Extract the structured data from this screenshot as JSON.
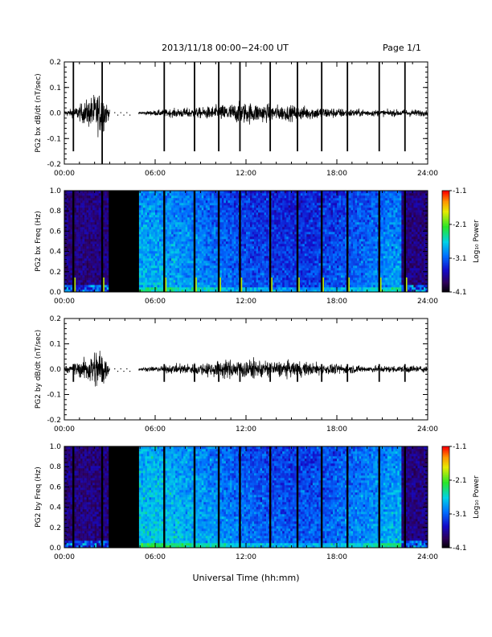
{
  "header": {
    "title": "2013/11/18  00:00−24:00 UT",
    "page": "Page 1/1"
  },
  "xaxis_title": "Universal Time (hh:mm)",
  "chart_data": [
    {
      "type": "line",
      "title": "",
      "ylabel": "PG2 bx dB/dt (nT/sec)",
      "xlabel": "Universal Time (hh:mm)",
      "xlim": [
        0,
        24
      ],
      "ylim": [
        -0.2,
        0.2
      ],
      "x_ticks": [
        "00:00",
        "06:00",
        "12:00",
        "18:00",
        "24:00"
      ],
      "y_ticks": [
        "-0.2",
        "-0.1",
        "0.0",
        "0.1",
        "0.2"
      ],
      "gap_hours": [
        3.0,
        4.9
      ],
      "spike_times_hours": [
        0.6,
        2.5,
        6.6,
        8.6,
        10.2,
        11.6,
        13.6,
        15.4,
        17.0,
        18.7,
        20.8,
        22.5
      ],
      "series": [
        {
          "x": [
            0,
            0.5,
            1,
            1.5,
            2,
            2.5,
            3,
            4.9,
            6,
            7,
            8,
            9,
            10,
            11,
            12,
            13,
            14,
            15,
            16,
            17,
            18,
            19,
            20,
            21,
            22,
            23,
            24
          ],
          "y": [
            0.01,
            0.015,
            0.03,
            0.05,
            0.07,
            0.08,
            0.01,
            0.005,
            0.01,
            0.015,
            0.018,
            0.02,
            0.028,
            0.035,
            0.04,
            0.035,
            0.03,
            0.028,
            0.025,
            0.022,
            0.018,
            0.015,
            0.012,
            0.012,
            0.012,
            0.014,
            0.01
          ]
        }
      ]
    },
    {
      "type": "heatmap",
      "title": "",
      "ylabel": "PG2 bx Freq (Hz)",
      "xlim": [
        0,
        24
      ],
      "ylim": [
        0.0,
        1.0
      ],
      "x_ticks": [
        "00:00",
        "06:00",
        "12:00",
        "18:00",
        "24:00"
      ],
      "y_ticks": [
        "0.0",
        "0.2",
        "0.4",
        "0.6",
        "0.8",
        "1.0"
      ],
      "colorbar_label": "Log₁₀ Power",
      "colorbar_ticks": [
        "-1.1",
        "-2.1",
        "-3.1",
        "-4.1"
      ],
      "colorbar_range": [
        -4.1,
        -1.1
      ],
      "gap_hours": [
        3.0,
        4.9
      ],
      "spike_times_hours": [
        0.6,
        2.5,
        6.6,
        8.6,
        10.2,
        11.6,
        13.6,
        15.4,
        17.0,
        18.7,
        20.8,
        22.5
      ]
    },
    {
      "type": "line",
      "title": "",
      "ylabel": "PG2 by dB/dt (nT/sec)",
      "xlabel": "Universal Time (hh:mm)",
      "xlim": [
        0,
        24
      ],
      "ylim": [
        -0.2,
        0.2
      ],
      "x_ticks": [
        "00:00",
        "06:00",
        "12:00",
        "18:00",
        "24:00"
      ],
      "y_ticks": [
        "-0.2",
        "-0.1",
        "0.0",
        "0.1",
        "0.2"
      ],
      "gap_hours": [
        3.0,
        4.9
      ],
      "spike_times_hours": [
        0.6,
        2.5,
        6.6,
        8.6,
        10.2,
        11.6,
        13.6,
        15.4,
        17.0,
        18.7,
        20.8,
        22.5
      ],
      "series": [
        {
          "x": [
            0,
            0.5,
            1,
            1.5,
            2,
            2.5,
            3,
            4.9,
            6,
            7,
            8,
            9,
            10,
            11,
            12,
            13,
            14,
            15,
            16,
            17,
            18,
            19,
            20,
            21,
            22,
            23,
            24
          ],
          "y": [
            0.01,
            0.015,
            0.03,
            0.05,
            0.07,
            0.08,
            0.01,
            0.005,
            0.01,
            0.015,
            0.02,
            0.024,
            0.03,
            0.034,
            0.035,
            0.033,
            0.03,
            0.028,
            0.026,
            0.022,
            0.018,
            0.015,
            0.012,
            0.012,
            0.012,
            0.014,
            0.01
          ]
        }
      ]
    },
    {
      "type": "heatmap",
      "title": "",
      "ylabel": "PG2 by Freq (Hz)",
      "xlim": [
        0,
        24
      ],
      "ylim": [
        0.0,
        1.0
      ],
      "x_ticks": [
        "00:00",
        "06:00",
        "12:00",
        "18:00",
        "24:00"
      ],
      "y_ticks": [
        "0.0",
        "0.2",
        "0.4",
        "0.6",
        "0.8",
        "1.0"
      ],
      "colorbar_label": "Log₁₀ Power",
      "colorbar_ticks": [
        "-1.1",
        "-2.1",
        "-3.1",
        "-4.1"
      ],
      "colorbar_range": [
        -4.1,
        -1.1
      ],
      "gap_hours": [
        3.0,
        4.9
      ],
      "spike_times_hours": [
        0.6,
        2.5,
        6.6,
        8.6,
        10.2,
        11.6,
        13.6,
        15.4,
        17.0,
        18.7,
        20.8,
        22.5
      ]
    }
  ]
}
